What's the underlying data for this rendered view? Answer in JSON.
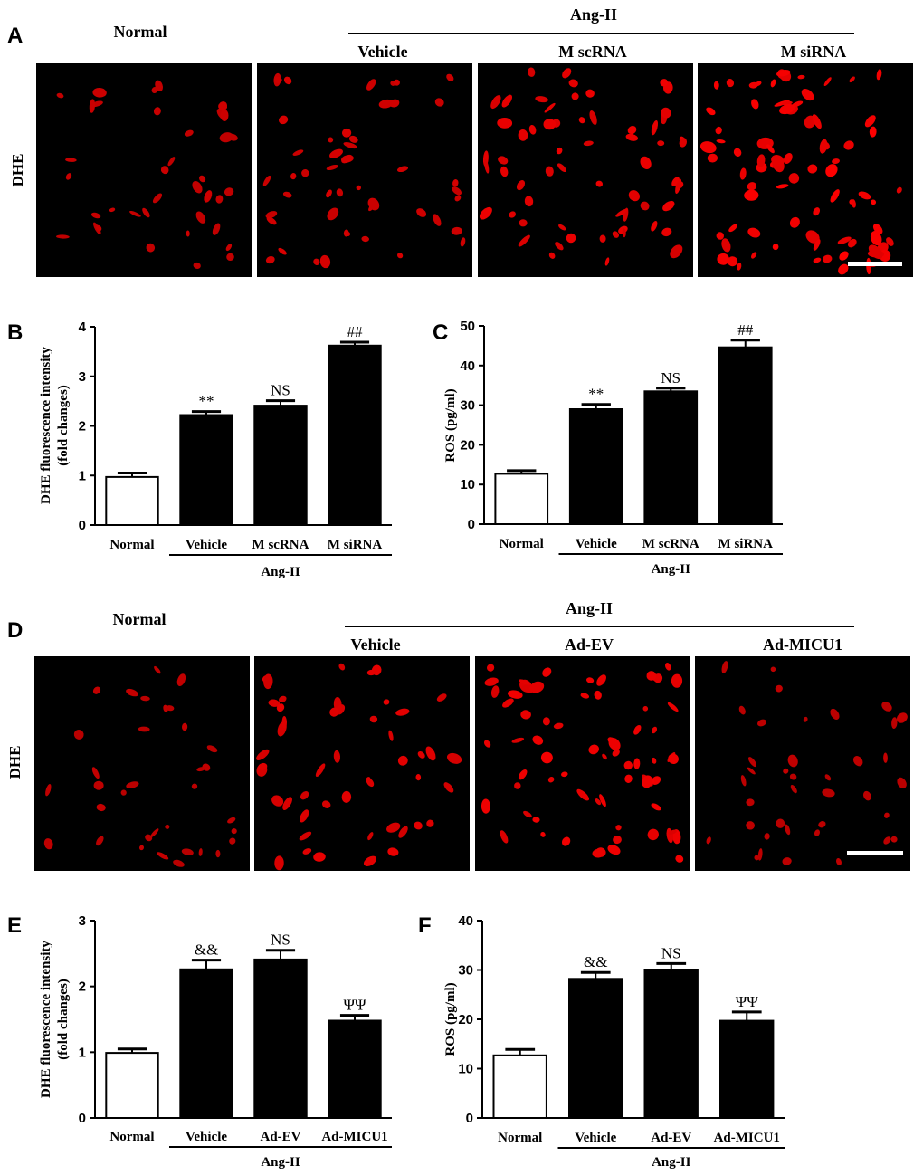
{
  "panels": {
    "A": {
      "letter": "A",
      "stain_label": "DHE",
      "group_label": "Ang-II",
      "columns": [
        "Normal",
        "Vehicle",
        "M scRNA",
        "M siRNA"
      ],
      "cell_density": [
        38,
        48,
        62,
        82
      ],
      "cell_brightness": [
        0.55,
        0.65,
        0.85,
        1.0
      ]
    },
    "D": {
      "letter": "D",
      "stain_label": "DHE",
      "group_label": "Ang-II",
      "columns": [
        "Normal",
        "Vehicle",
        "Ad-EV",
        "Ad-MICU1"
      ],
      "cell_density": [
        34,
        48,
        70,
        38
      ],
      "cell_brightness": [
        0.45,
        0.8,
        0.9,
        0.45
      ]
    }
  },
  "chart_data": [
    {
      "panel": "B",
      "type": "bar",
      "categories": [
        "Normal",
        "Vehicle",
        "M scRNA",
        "M siRNA"
      ],
      "values": [
        0.97,
        2.22,
        2.41,
        3.62
      ],
      "errors": [
        0.08,
        0.07,
        0.1,
        0.07
      ],
      "annotations": [
        "",
        "**",
        "NS",
        "##"
      ],
      "ylabel_line1": "DHE fluorescence intensity",
      "ylabel_line2": "(fold changes)",
      "ylim": [
        0,
        4
      ],
      "yticks": [
        0,
        1,
        2,
        3,
        4
      ],
      "group_label": "Ang-II",
      "group_span": [
        1,
        3
      ]
    },
    {
      "panel": "C",
      "type": "bar",
      "categories": [
        "Normal",
        "Vehicle",
        "M scRNA",
        "M siRNA"
      ],
      "values": [
        12.7,
        29.0,
        33.5,
        44.6
      ],
      "errors": [
        0.8,
        1.2,
        0.8,
        1.8
      ],
      "annotations": [
        "",
        "**",
        "NS",
        "##"
      ],
      "ylabel_line1": "ROS (pg/ml)",
      "ylabel_line2": "",
      "ylim": [
        0,
        50
      ],
      "yticks": [
        0,
        10,
        20,
        30,
        40,
        50
      ],
      "group_label": "Ang-II",
      "group_span": [
        1,
        3
      ]
    },
    {
      "panel": "E",
      "type": "bar",
      "categories": [
        "Normal",
        "Vehicle",
        "Ad-EV",
        "Ad-MICU1"
      ],
      "values": [
        0.99,
        2.26,
        2.41,
        1.48
      ],
      "errors": [
        0.06,
        0.14,
        0.14,
        0.08
      ],
      "annotations": [
        "",
        "&&",
        "NS",
        "ΨΨ"
      ],
      "ylabel_line1": "DHE fluorescence intensity",
      "ylabel_line2": "(fold changes)",
      "ylim": [
        0,
        3
      ],
      "yticks": [
        0,
        1,
        2,
        3
      ],
      "group_label": "Ang-II",
      "group_span": [
        1,
        3
      ]
    },
    {
      "panel": "F",
      "type": "bar",
      "categories": [
        "Normal",
        "Vehicle",
        "Ad-EV",
        "Ad-MICU1"
      ],
      "values": [
        12.7,
        28.2,
        30.1,
        19.7
      ],
      "errors": [
        1.2,
        1.3,
        1.2,
        1.8
      ],
      "annotations": [
        "",
        "&&",
        "NS",
        "ΨΨ"
      ],
      "ylabel_line1": "ROS (pg/ml)",
      "ylabel_line2": "",
      "ylim": [
        0,
        40
      ],
      "yticks": [
        0,
        10,
        20,
        30,
        40
      ],
      "group_label": "Ang-II",
      "group_span": [
        1,
        3
      ]
    }
  ]
}
